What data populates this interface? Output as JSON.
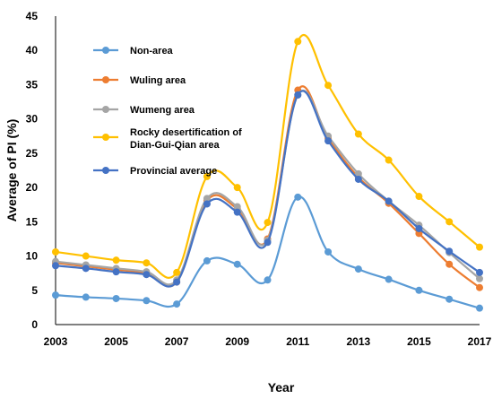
{
  "chart_data": {
    "type": "line",
    "title": "",
    "xlabel": "Year",
    "ylabel": "Average of PI (%)",
    "x": [
      2003,
      2004,
      2005,
      2006,
      2007,
      2008,
      2009,
      2010,
      2011,
      2012,
      2013,
      2014,
      2015,
      2016,
      2017
    ],
    "x_tick_labels": [
      "2003",
      "2005",
      "2007",
      "2009",
      "2011",
      "2013",
      "2015",
      "2017"
    ],
    "xlim": [
      2003,
      2017
    ],
    "ylim": [
      0,
      45
    ],
    "y_ticks": [
      0,
      5,
      10,
      15,
      20,
      25,
      30,
      35,
      40,
      45
    ],
    "grid": false,
    "legend_position": "top-left",
    "series": [
      {
        "name": "Non-area",
        "color": "#5B9BD5",
        "values": [
          4.3,
          4.0,
          3.8,
          3.5,
          3.0,
          9.3,
          8.8,
          6.5,
          18.6,
          10.6,
          8.1,
          6.6,
          5.0,
          3.7,
          2.4
        ]
      },
      {
        "name": "Wuling area",
        "color": "#ED7D31",
        "values": [
          9.0,
          8.5,
          8.0,
          7.5,
          6.2,
          18.1,
          16.9,
          12.5,
          34.2,
          27.2,
          21.5,
          17.7,
          13.3,
          8.8,
          5.4
        ]
      },
      {
        "name": "Wumeng area",
        "color": "#A5A5A5",
        "values": [
          9.2,
          8.7,
          8.2,
          7.7,
          6.5,
          18.4,
          17.2,
          12.3,
          33.5,
          27.5,
          22.0,
          18.0,
          14.5,
          10.5,
          6.7
        ]
      },
      {
        "name": "Rocky desertification of Dian-Gui-Qian area",
        "color": "#FFC000",
        "values": [
          10.6,
          10.0,
          9.4,
          9.0,
          7.6,
          21.6,
          20.0,
          14.9,
          41.3,
          34.9,
          27.8,
          24.0,
          18.7,
          15.0,
          11.3
        ]
      },
      {
        "name": "Provincial average",
        "color": "#4472C4",
        "values": [
          8.6,
          8.2,
          7.7,
          7.3,
          6.2,
          17.6,
          16.4,
          12.0,
          33.5,
          26.8,
          21.2,
          18.0,
          14.0,
          10.7,
          7.6
        ]
      }
    ]
  }
}
